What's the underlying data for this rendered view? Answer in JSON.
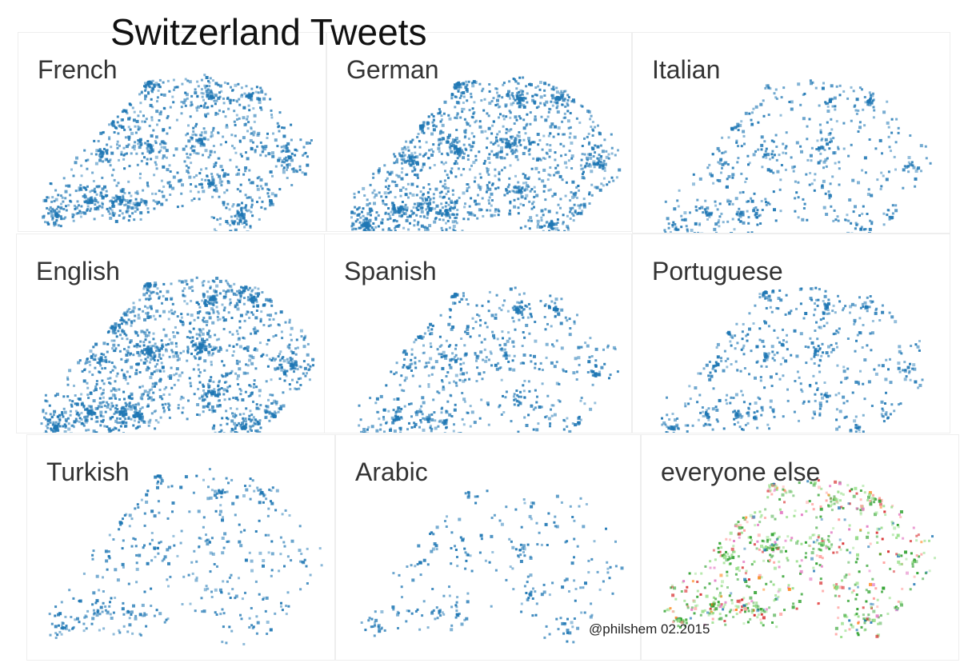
{
  "title": "Switzerland Tweets",
  "credit": "@philshem 02.2015",
  "colors": {
    "point": "#1f77b4",
    "other": [
      "#2ca02c",
      "#98df8a",
      "#d62728",
      "#ff9896",
      "#ff7f0e",
      "#e377c2",
      "#1f77b4"
    ]
  },
  "chart_data": {
    "type": "scatter",
    "panels": [
      {
        "label": "French"
      },
      {
        "label": "German"
      },
      {
        "label": "Italian"
      },
      {
        "label": "English"
      },
      {
        "label": "Spanish"
      },
      {
        "label": "Portuguese"
      },
      {
        "label": "Turkish"
      },
      {
        "label": "Arabic"
      },
      {
        "label": "everyone else"
      }
    ]
  }
}
